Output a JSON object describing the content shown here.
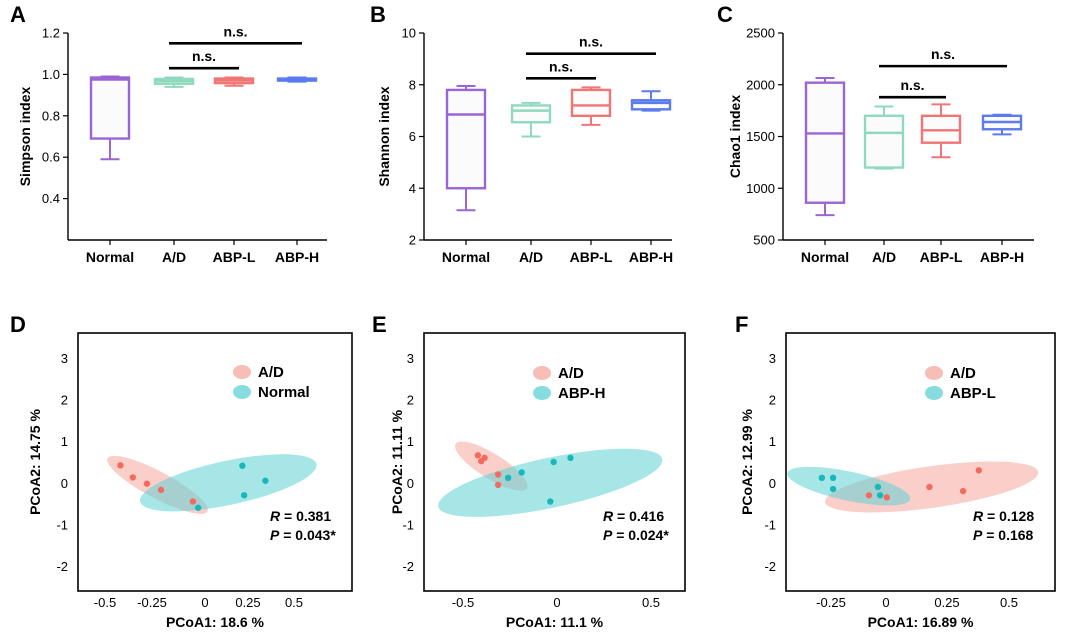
{
  "colors": {
    "Normal": "#9b65d6",
    "A/D": "#8fd9be",
    "ABP-L": "#f07676",
    "ABP-H": "#5b7bef",
    "group1_point": "#f36b5f",
    "group1_ellipse": "#f6a79f",
    "group2_point": "#18b7b9",
    "group2_ellipse": "#5ed2d4"
  },
  "chart_data": [
    {
      "type": "boxplot",
      "panel": "A",
      "categories": [
        "Normal",
        "A/D",
        "ABP-L",
        "ABP-H"
      ],
      "ylabel": "Simpson index",
      "ylim": [
        0.2,
        1.2
      ],
      "yticks": [
        "0.4",
        "0.6",
        "0.8",
        "1.0",
        "1.2"
      ],
      "boxes": [
        {
          "group": "Normal",
          "min": 0.59,
          "q1": 0.69,
          "median": 0.975,
          "q3": 0.985,
          "max": 0.99
        },
        {
          "group": "A/D",
          "min": 0.94,
          "q1": 0.955,
          "median": 0.968,
          "q3": 0.978,
          "max": 0.985
        },
        {
          "group": "ABP-L",
          "min": 0.945,
          "q1": 0.958,
          "median": 0.97,
          "q3": 0.98,
          "max": 0.985
        },
        {
          "group": "ABP-H",
          "min": 0.965,
          "q1": 0.97,
          "median": 0.975,
          "q3": 0.98,
          "max": 0.985
        }
      ],
      "annotations": [
        {
          "from": 1,
          "to": 2,
          "level": 1.03,
          "text": "n.s."
        },
        {
          "from": 1,
          "to": 3,
          "level": 1.15,
          "text": "n.s."
        }
      ]
    },
    {
      "type": "boxplot",
      "panel": "B",
      "categories": [
        "Normal",
        "A/D",
        "ABP-L",
        "ABP-H"
      ],
      "ylabel": "Shannon index",
      "ylim": [
        2,
        10
      ],
      "yticks": [
        "2",
        "4",
        "6",
        "8",
        "10"
      ],
      "boxes": [
        {
          "group": "Normal",
          "min": 3.15,
          "q1": 4.0,
          "median": 6.85,
          "q3": 7.8,
          "max": 7.95
        },
        {
          "group": "A/D",
          "min": 6.0,
          "q1": 6.55,
          "median": 7.0,
          "q3": 7.2,
          "max": 7.3
        },
        {
          "group": "ABP-L",
          "min": 6.45,
          "q1": 6.8,
          "median": 7.2,
          "q3": 7.8,
          "max": 7.9
        },
        {
          "group": "ABP-H",
          "min": 7.0,
          "q1": 7.05,
          "median": 7.3,
          "q3": 7.4,
          "max": 7.75
        }
      ],
      "annotations": [
        {
          "from": 1,
          "to": 2,
          "level": 8.25,
          "text": "n.s."
        },
        {
          "from": 1,
          "to": 3,
          "level": 9.2,
          "text": "n.s."
        }
      ]
    },
    {
      "type": "boxplot",
      "panel": "C",
      "categories": [
        "Normal",
        "A/D",
        "ABP-L",
        "ABP-H"
      ],
      "ylabel": "Chao1 index",
      "ylim": [
        500,
        2500
      ],
      "yticks": [
        "500",
        "1000",
        "1500",
        "2000",
        "2500"
      ],
      "boxes": [
        {
          "group": "Normal",
          "min": 740,
          "q1": 860,
          "median": 1530,
          "q3": 2020,
          "max": 2065
        },
        {
          "group": "A/D",
          "min": 1190,
          "q1": 1200,
          "median": 1535,
          "q3": 1700,
          "max": 1790
        },
        {
          "group": "ABP-L",
          "min": 1300,
          "q1": 1440,
          "median": 1560,
          "q3": 1700,
          "max": 1810
        },
        {
          "group": "ABP-H",
          "min": 1520,
          "q1": 1570,
          "median": 1640,
          "q3": 1700,
          "max": 1710
        }
      ],
      "annotations": [
        {
          "from": 1,
          "to": 2,
          "level": 1880,
          "text": "n.s."
        },
        {
          "from": 1,
          "to": 3,
          "level": 2180,
          "text": "n.s."
        }
      ]
    },
    {
      "type": "scatter",
      "panel": "D",
      "xlabel": "PCoA1: 18.6 %",
      "ylabel": "PCoA2: 14.75 %",
      "xlim": [
        -0.7,
        0.85
      ],
      "ylim": [
        -2.6,
        3.6
      ],
      "xticks": [
        "-0.5",
        "-0.25",
        "0",
        "0.25",
        "0.5"
      ],
      "yticks": [
        "-2",
        "-1",
        "0",
        "1",
        "2",
        "3"
      ],
      "legend": [
        "A/D",
        "Normal"
      ],
      "series": [
        {
          "name": "A/D",
          "points": [
            [
              -0.46,
              0.42
            ],
            [
              -0.39,
              0.13
            ],
            [
              -0.31,
              -0.02
            ],
            [
              -0.23,
              -0.17
            ],
            [
              -0.05,
              -0.45
            ]
          ],
          "ellipse": {
            "cx": -0.25,
            "cy": -0.05,
            "rx": 0.32,
            "ry": 0.32,
            "angle": 28
          }
        },
        {
          "name": "Normal",
          "points": [
            [
              -0.02,
              -0.6
            ],
            [
              0.23,
              0.41
            ],
            [
              0.24,
              -0.3
            ],
            [
              0.36,
              0.05
            ]
          ],
          "ellipse": {
            "cx": 0.15,
            "cy": 0.0,
            "rx": 0.51,
            "ry": 0.53,
            "angle": -12
          }
        }
      ],
      "stats": {
        "R": "0.381",
        "P": "0.043*"
      }
    },
    {
      "type": "scatter",
      "panel": "E",
      "xlabel": "PCoA1: 11.1 %",
      "ylabel": "PCoA2: 11.11 %",
      "xlim": [
        -0.7,
        0.85
      ],
      "ylim": [
        -2.6,
        3.6
      ],
      "xticks": [
        "-0.5",
        "0",
        "0.5"
      ],
      "yticks": [
        "-2",
        "-1",
        "0",
        "1",
        "2",
        "3"
      ],
      "legend": [
        "A/D",
        "ABP-H"
      ],
      "series": [
        {
          "name": "A/D",
          "points": [
            [
              -0.38,
              0.66
            ],
            [
              -0.36,
              0.52
            ],
            [
              -0.34,
              0.6
            ],
            [
              -0.26,
              0.2
            ],
            [
              -0.26,
              -0.05
            ]
          ],
          "ellipse": {
            "cx": -0.3,
            "cy": 0.4,
            "rx": 0.25,
            "ry": 0.3,
            "angle": 32
          }
        },
        {
          "name": "ABP-H",
          "points": [
            [
              -0.2,
              0.12
            ],
            [
              -0.12,
              0.25
            ],
            [
              0.05,
              -0.45
            ],
            [
              0.07,
              0.5
            ],
            [
              0.17,
              0.6
            ]
          ],
          "ellipse": {
            "cx": 0.05,
            "cy": 0.0,
            "rx": 0.68,
            "ry": 0.6,
            "angle": -12
          }
        }
      ],
      "stats": {
        "R": "0.416",
        "P": "0.024*"
      }
    },
    {
      "type": "scatter",
      "panel": "F",
      "xlabel": "PCoA1: 16.89 %",
      "ylabel": "PCoA2: 12.99 %",
      "xlim": [
        -0.45,
        0.75
      ],
      "ylim": [
        -2.6,
        3.6
      ],
      "xticks": [
        "-0.25",
        "0",
        "0.25",
        "0.5"
      ],
      "yticks": [
        "-2",
        "-1",
        "0",
        "1",
        "2",
        "3"
      ],
      "legend": [
        "A/D",
        "ABP-L"
      ],
      "series": [
        {
          "name": "A/D",
          "points": [
            [
              -0.08,
              -0.3
            ],
            [
              0.0,
              -0.35
            ],
            [
              0.19,
              -0.1
            ],
            [
              0.34,
              -0.2
            ],
            [
              0.41,
              0.3
            ]
          ],
          "ellipse": {
            "cx": 0.2,
            "cy": -0.1,
            "rx": 0.48,
            "ry": 0.5,
            "angle": -8
          }
        },
        {
          "name": "ABP-L",
          "points": [
            [
              -0.29,
              0.12
            ],
            [
              -0.24,
              0.12
            ],
            [
              -0.24,
              -0.15
            ],
            [
              -0.04,
              -0.1
            ],
            [
              -0.03,
              -0.3
            ]
          ],
          "ellipse": {
            "cx": -0.17,
            "cy": -0.08,
            "rx": 0.28,
            "ry": 0.35,
            "angle": 12
          }
        }
      ],
      "stats": {
        "R": "0.128",
        "P": "0.168"
      }
    }
  ]
}
